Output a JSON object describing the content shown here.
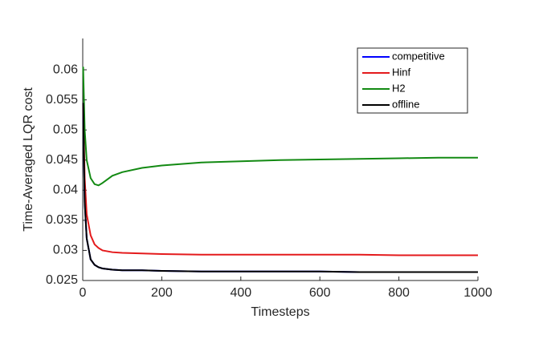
{
  "chart_data": {
    "type": "line",
    "xlabel": "Timesteps",
    "ylabel": "Time-Averaged LQR cost",
    "x": [
      1,
      5,
      10,
      20,
      30,
      40,
      50,
      75,
      100,
      150,
      200,
      300,
      400,
      500,
      600,
      700,
      800,
      900,
      1000
    ],
    "series": [
      {
        "name": "competitive",
        "color": "#0000ff",
        "values": [
          0.0545,
          0.038,
          0.032,
          0.0285,
          0.0276,
          0.0272,
          0.027,
          0.0268,
          0.0267,
          0.0267,
          0.0266,
          0.0265,
          0.0265,
          0.0265,
          0.0265,
          0.0264,
          0.0264,
          0.0264,
          0.0264
        ]
      },
      {
        "name": "Hinf",
        "color": "#e41a1c",
        "values": [
          0.0545,
          0.042,
          0.036,
          0.0325,
          0.031,
          0.0304,
          0.03,
          0.0297,
          0.0296,
          0.0295,
          0.0294,
          0.0293,
          0.0293,
          0.0293,
          0.0293,
          0.0293,
          0.0292,
          0.0292,
          0.0292
        ]
      },
      {
        "name": "H2",
        "color": "#138a13",
        "values": [
          0.0605,
          0.05,
          0.045,
          0.042,
          0.041,
          0.0408,
          0.0412,
          0.0424,
          0.043,
          0.0437,
          0.0441,
          0.0446,
          0.0448,
          0.045,
          0.0451,
          0.0452,
          0.0453,
          0.0454,
          0.0454
        ]
      },
      {
        "name": "offline",
        "color": "#000000",
        "values": [
          0.0545,
          0.038,
          0.032,
          0.0285,
          0.0276,
          0.0272,
          0.027,
          0.0268,
          0.0267,
          0.0267,
          0.0266,
          0.0265,
          0.0265,
          0.0265,
          0.0265,
          0.0264,
          0.0264,
          0.0264,
          0.0264
        ]
      }
    ],
    "xlim": [
      0,
      1000
    ],
    "xticks": [
      0,
      200,
      400,
      600,
      800,
      1000
    ],
    "ylim": [
      0.025,
      0.0652
    ],
    "yticks": [
      0.025,
      0.03,
      0.035,
      0.04,
      0.045,
      0.05,
      0.055,
      0.06
    ],
    "legend": "upper-right",
    "grid": false
  }
}
